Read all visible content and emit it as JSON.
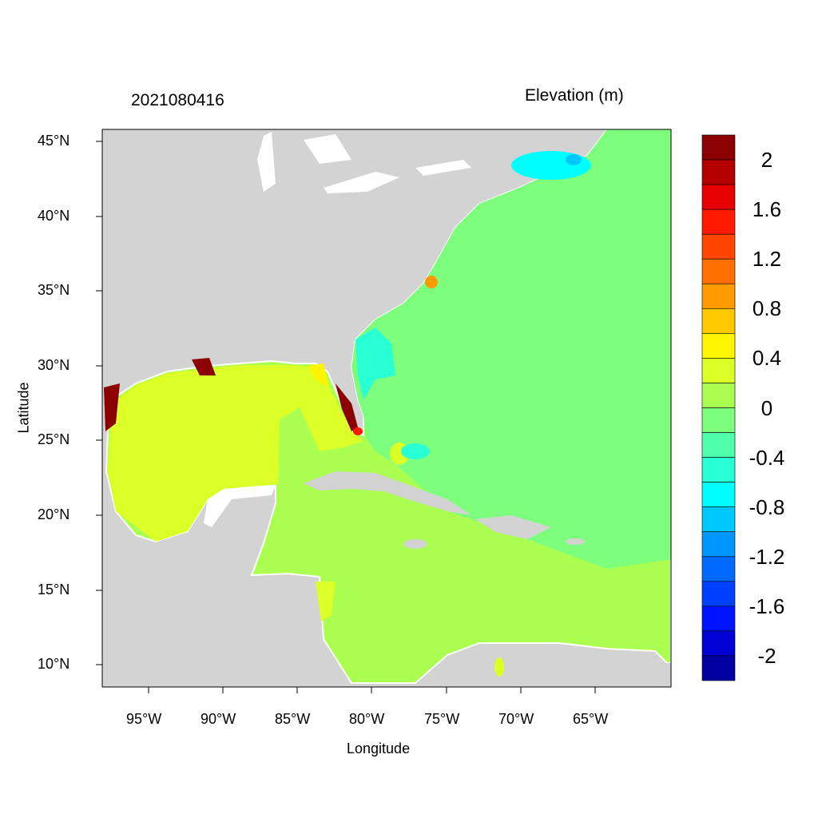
{
  "header": {
    "timestamp": "2021080416",
    "variable": "Elevation (m)"
  },
  "axes": {
    "xlabel": "Longitude",
    "ylabel": "Latitude",
    "x_ticks": [
      "95°W",
      "90°W",
      "85°W",
      "80°W",
      "75°W",
      "70°W",
      "65°W"
    ],
    "y_ticks": [
      "45°N",
      "40°N",
      "35°N",
      "30°N",
      "25°N",
      "20°N",
      "15°N",
      "10°N"
    ],
    "lon_range": [
      -98.1,
      -59.9
    ],
    "lat_range": [
      8.5,
      45.8
    ]
  },
  "colorbar": {
    "labels": [
      "2",
      "1.6",
      "1.2",
      "0.8",
      "0.4",
      "0",
      "-0.4",
      "-0.8",
      "-1.2",
      "-1.6",
      "-2"
    ],
    "range": [
      -2.2,
      2.2
    ],
    "step": 0.2,
    "colors": [
      "#8B0000",
      "#B40000",
      "#E60000",
      "#FF1A00",
      "#FF4500",
      "#FF6E00",
      "#FF9A00",
      "#FFC800",
      "#FFF500",
      "#DCFF28",
      "#AAFF50",
      "#7DFF7D",
      "#50FFAA",
      "#28FFD2",
      "#00FFFF",
      "#00C8FF",
      "#0096FF",
      "#0069FF",
      "#0041FF",
      "#0014FF",
      "#0000D2",
      "#0000A0"
    ]
  },
  "map_colors": {
    "land": "#D3D3D3",
    "gulf": "#DCFF28",
    "caribbean": "#AAFF50",
    "atlantic": "#7DFF7D",
    "gulf_of_maine": "#00FFFF",
    "coastal_strip": "#28FFD2",
    "surge": "#8B0000"
  }
}
